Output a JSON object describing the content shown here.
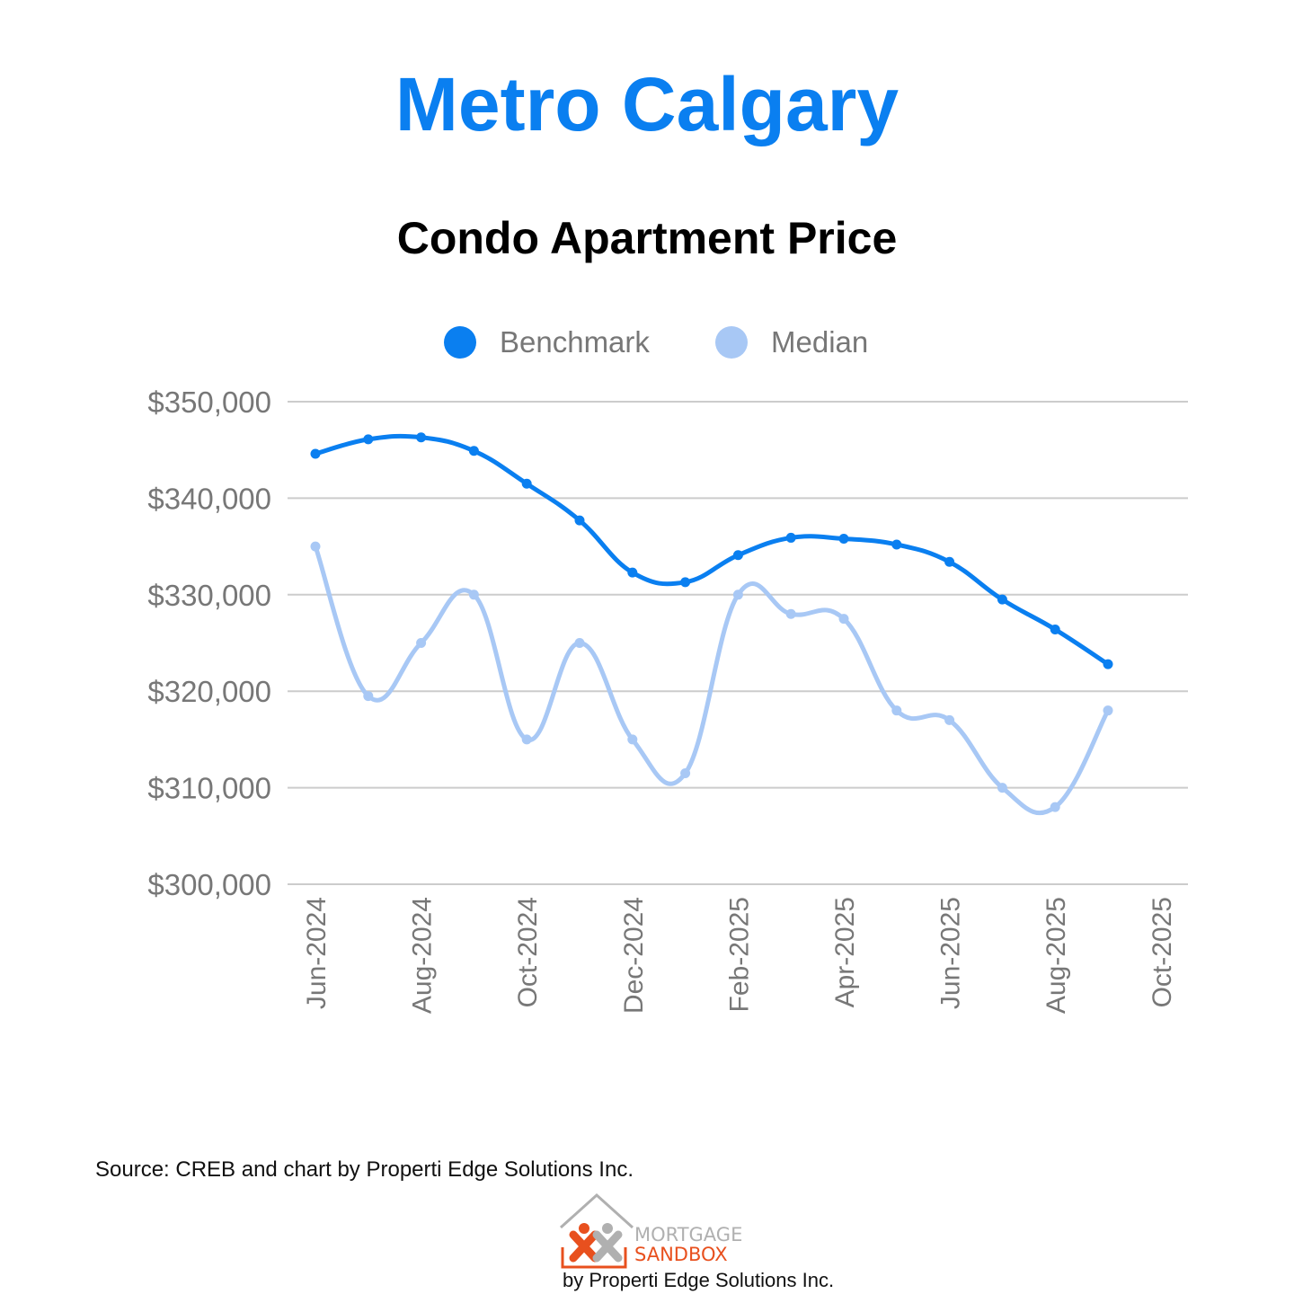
{
  "header": {
    "title": "Metro Calgary",
    "subtitle": "Condo Apartment Price"
  },
  "chart_data": {
    "type": "line",
    "x": [
      "Jun-2024",
      "Jul-2024",
      "Aug-2024",
      "Sep-2024",
      "Oct-2024",
      "Nov-2024",
      "Dec-2024",
      "Jan-2025",
      "Feb-2025",
      "Mar-2025",
      "Apr-2025",
      "May-2025",
      "Jun-2025",
      "Jul-2025",
      "Aug-2025",
      "Sep-2025"
    ],
    "x_tick_labels": [
      "Jun-2024",
      "Aug-2024",
      "Oct-2024",
      "Dec-2024",
      "Feb-2025",
      "Apr-2025",
      "Jun-2025",
      "Aug-2025",
      "Oct-2025"
    ],
    "series": [
      {
        "name": "Benchmark",
        "color": "#0a7ff0",
        "values": [
          344600,
          346100,
          346300,
          344900,
          341500,
          337700,
          332300,
          331300,
          334100,
          335900,
          335800,
          335200,
          333400,
          329500,
          326400,
          322800
        ]
      },
      {
        "name": "Median",
        "color": "#a8c8f5",
        "values": [
          335000,
          319500,
          325000,
          330000,
          315000,
          325000,
          315000,
          311500,
          330000,
          328000,
          327500,
          318000,
          317000,
          310000,
          308000,
          318000
        ]
      }
    ],
    "y_tick_labels": [
      "$350,000",
      "$340,000",
      "$330,000",
      "$320,000",
      "$310,000",
      "$300,000"
    ],
    "y_ticks": [
      350000,
      340000,
      330000,
      320000,
      310000,
      300000
    ],
    "ylim": [
      300000,
      350000
    ],
    "grid": true,
    "legend_position": "top-center",
    "grid_color": "#cccccc",
    "tick_color": "#777777"
  },
  "footer": {
    "source": "Source: CREB and chart by Properti Edge Solutions Inc.",
    "logo_word_1": "MORTGAGE",
    "logo_word_2": "SANDBOX",
    "logo_byline": "by Properti Edge Solutions Inc.",
    "logo_accent": "#e8501e",
    "logo_gray": "#b0b0b0"
  }
}
